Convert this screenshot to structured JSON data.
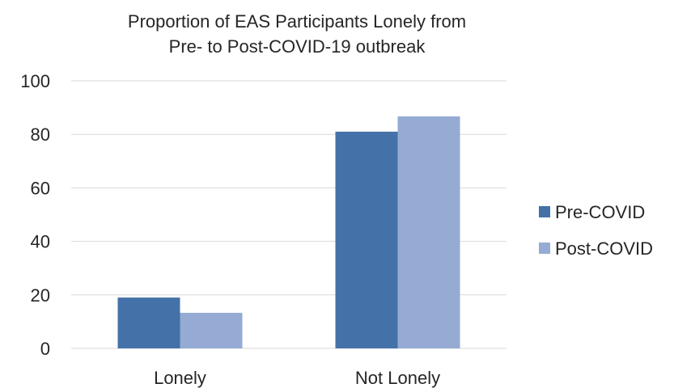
{
  "chart_data": {
    "type": "bar",
    "title": [
      "Proportion of EAS Participants Lonely from",
      "Pre- to Post-COVID-19 outbreak"
    ],
    "categories": [
      "Lonely",
      "Not Lonely"
    ],
    "series": [
      {
        "name": "Pre-COVID",
        "values": [
          19.0,
          81.0
        ],
        "color": "#4472a8"
      },
      {
        "name": "Post-COVID",
        "values": [
          13.3,
          86.7
        ],
        "color": "#95abd3"
      }
    ],
    "ylim": [
      0,
      100
    ],
    "yticks": [
      0,
      20,
      40,
      60,
      80,
      100
    ],
    "grid": true,
    "legend": "right"
  }
}
